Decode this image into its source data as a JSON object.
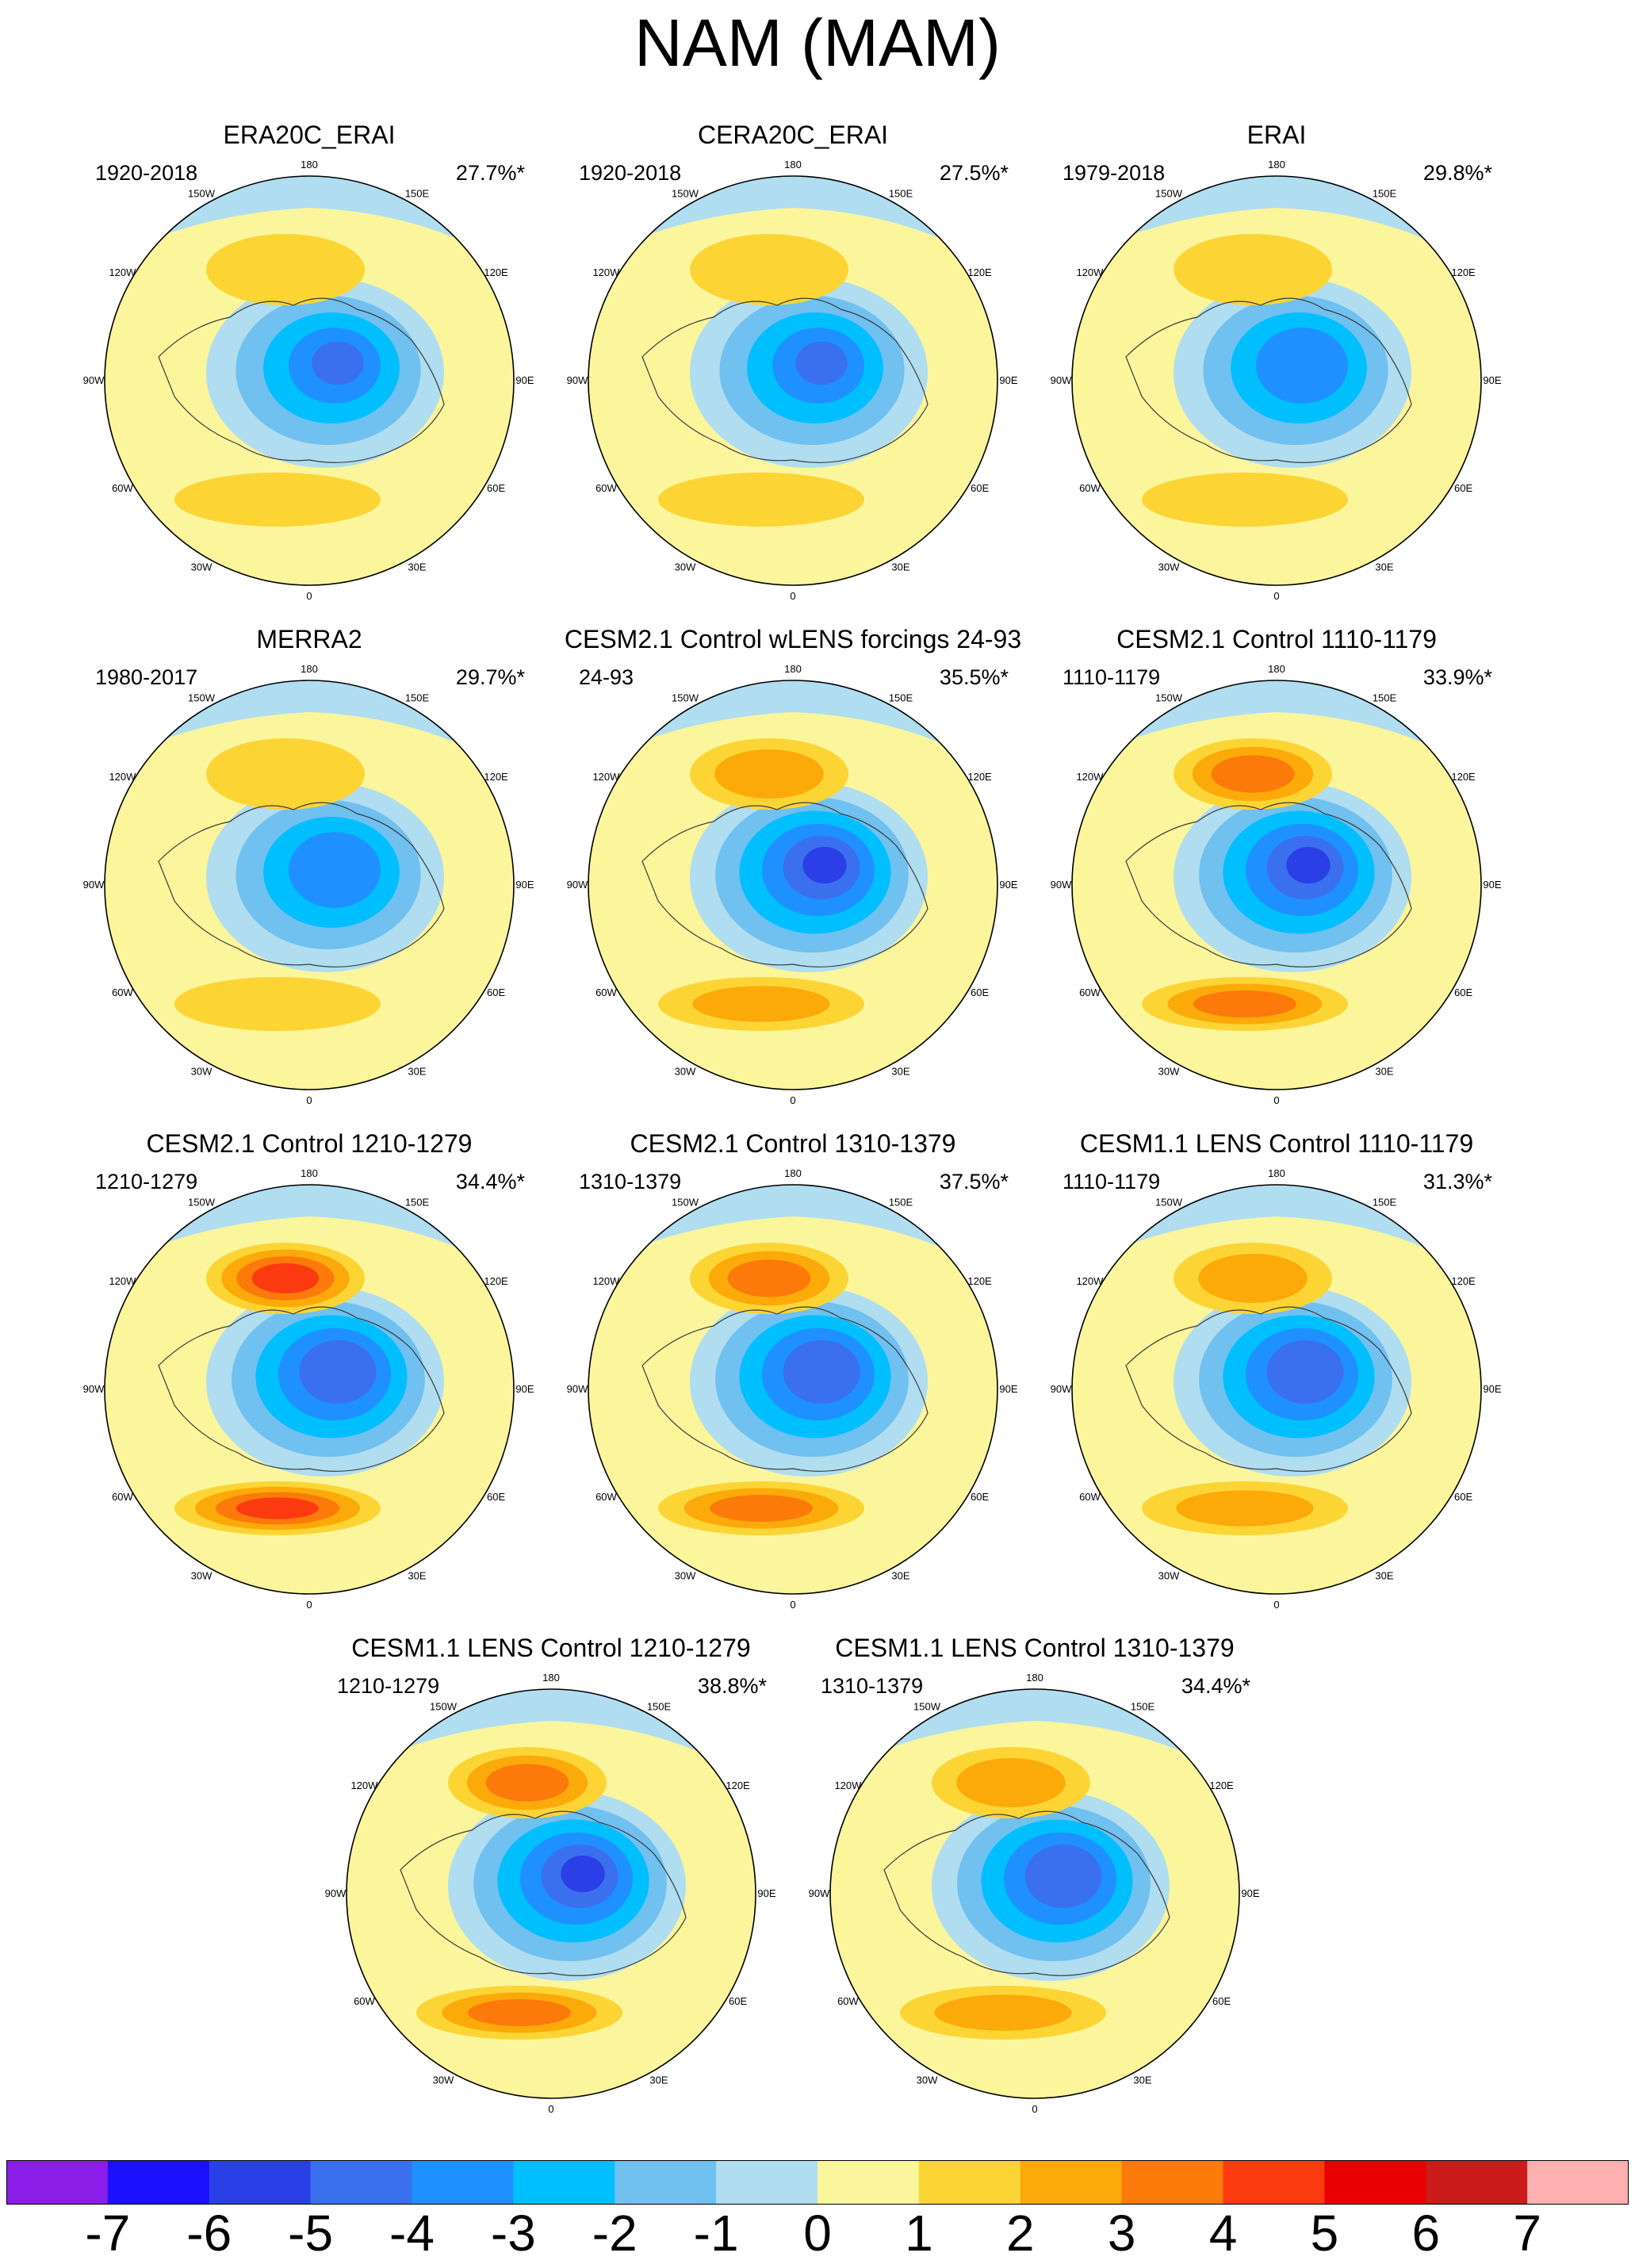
{
  "figure_title": "NAM (MAM)",
  "longitude_labels": [
    "180",
    "150E",
    "120E",
    "90E",
    "60E",
    "30E",
    "0",
    "30W",
    "60W",
    "90W",
    "120W",
    "150W"
  ],
  "panels": [
    {
      "title": "ERA20C_ERAI",
      "period": "1920-2018",
      "variance": "27.7%*",
      "low_min": -4.5,
      "high_max": 1.8
    },
    {
      "title": "CERA20C_ERAI",
      "period": "1920-2018",
      "variance": "27.5%*",
      "low_min": -4.5,
      "high_max": 1.8
    },
    {
      "title": "ERAI",
      "period": "1979-2018",
      "variance": "29.8%*",
      "low_min": -4.3,
      "high_max": 1.6
    },
    {
      "title": "MERRA2",
      "period": "1980-2017",
      "variance": "29.7%*",
      "low_min": -4.3,
      "high_max": 1.6
    },
    {
      "title": "CESM2.1 Control wLENS forcings 24-93",
      "period": "24-93",
      "variance": "35.5%*",
      "low_min": -5.5,
      "high_max": 2.3
    },
    {
      "title": "CESM2.1 Control 1110-1179",
      "period": "1110-1179",
      "variance": "33.9%*",
      "low_min": -5.6,
      "high_max": 3.3
    },
    {
      "title": "CESM2.1 Control 1210-1279",
      "period": "1210-1279",
      "variance": "34.4%*",
      "low_min": -5.3,
      "high_max": 4.4
    },
    {
      "title": "CESM2.1 Control 1310-1379",
      "period": "1310-1379",
      "variance": "37.5%*",
      "low_min": -5.4,
      "high_max": 3.6
    },
    {
      "title": "CESM1.1 LENS Control 1110-1179",
      "period": "1110-1179",
      "variance": "31.3%*",
      "low_min": -5.2,
      "high_max": 2.8
    },
    {
      "title": "CESM1.1 LENS Control 1210-1279",
      "period": "1210-1279",
      "variance": "38.8%*",
      "low_min": -5.6,
      "high_max": 3.2
    },
    {
      "title": "CESM1.1 LENS Control 1310-1379",
      "period": "1310-1379",
      "variance": "34.4%*",
      "low_min": -5.2,
      "high_max": 2.6
    }
  ],
  "colorbar": {
    "labels": [
      "-7",
      "-6",
      "-5",
      "-4",
      "-3",
      "-2",
      "-1",
      "0",
      "1",
      "2",
      "3",
      "4",
      "5",
      "6",
      "7"
    ],
    "colors": [
      "#8a1de8",
      "#1a0fff",
      "#2a3fe6",
      "#3a70ee",
      "#1e90ff",
      "#00bfff",
      "#70c0f0",
      "#b0ddf0",
      "#fbf59c",
      "#fcd535",
      "#fca90a",
      "#fb7a0a",
      "#fb3a10",
      "#e80000",
      "#cc1b1b",
      "#feafaf"
    ]
  }
}
